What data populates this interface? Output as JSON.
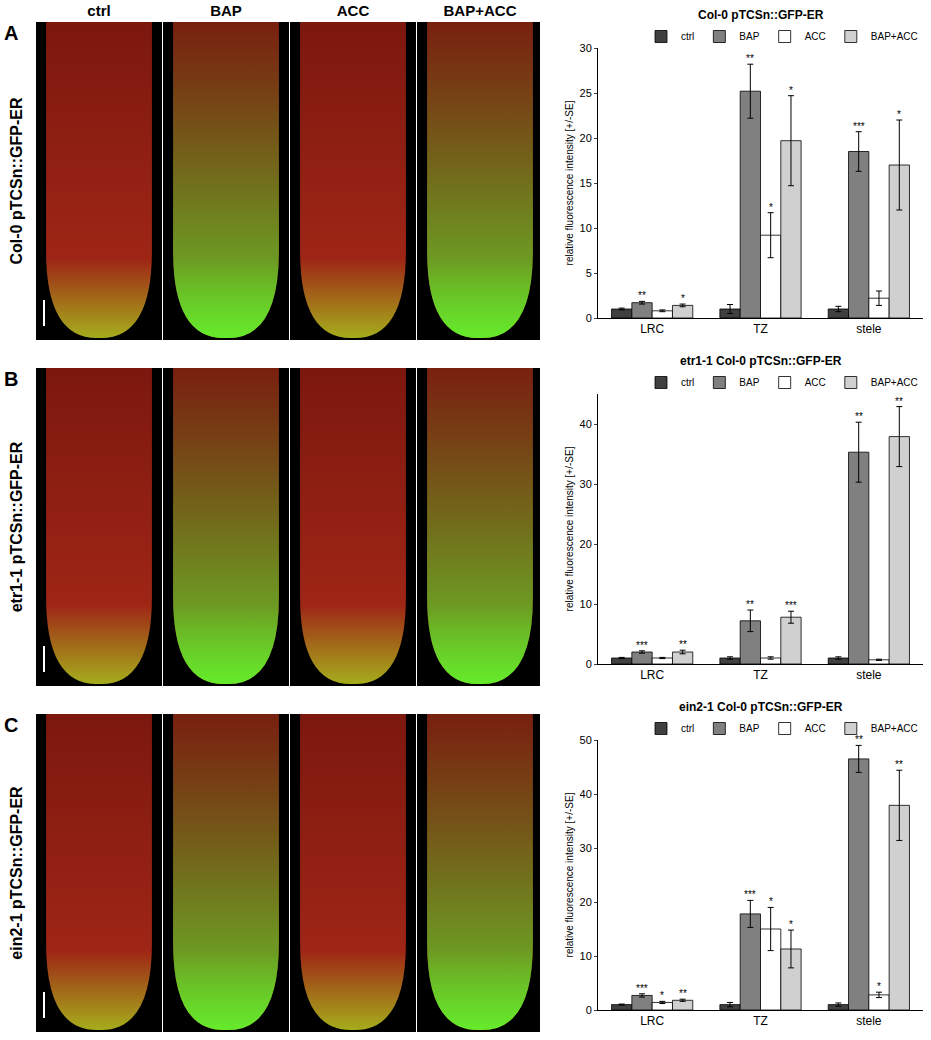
{
  "image_panels": {
    "columns": [
      "ctrl",
      "BAP",
      "ACC",
      "BAP+ACC"
    ],
    "rows": [
      {
        "letter": "A",
        "label": "Col-0 pTCSn::GFP-ER"
      },
      {
        "letter": "B",
        "label": "etr1-1 pTCSn::GFP-ER"
      },
      {
        "letter": "C",
        "label": "ein2-1 pTCSn::GFP-ER"
      }
    ]
  },
  "chart_data": [
    {
      "type": "bar",
      "title": "Col-0 pTCSn::GFP-ER",
      "y_label": "relative fluorescence intensity [+/-SE]",
      "categories": [
        "LRC",
        "TZ",
        "stele"
      ],
      "ylim": [
        0,
        30
      ],
      "yticks": [
        0,
        5,
        10,
        15,
        20,
        25,
        30
      ],
      "grid": false,
      "legend": "top",
      "series": [
        {
          "name": "ctrl",
          "color": "#404040",
          "values": [
            1.0,
            1.0,
            1.0
          ],
          "errors": [
            0.1,
            0.5,
            0.3
          ],
          "significance": [
            null,
            null,
            null
          ]
        },
        {
          "name": "BAP",
          "color": "#808080",
          "values": [
            1.7,
            25.2,
            18.5
          ],
          "errors": [
            0.15,
            3.0,
            2.2
          ],
          "significance": [
            "**",
            "**",
            "***"
          ]
        },
        {
          "name": "ACC",
          "color": "#ffffff",
          "values": [
            0.8,
            9.2,
            2.2
          ],
          "errors": [
            0.1,
            2.5,
            0.8
          ],
          "significance": [
            null,
            "*",
            null
          ]
        },
        {
          "name": "BAP+ACC",
          "color": "#d0d0d0",
          "values": [
            1.4,
            19.7,
            17.0
          ],
          "errors": [
            0.15,
            5.0,
            5.0
          ],
          "significance": [
            "*",
            "*",
            "*"
          ]
        }
      ]
    },
    {
      "type": "bar",
      "title": "etr1-1 Col-0 pTCSn::GFP-ER",
      "y_label": "relative fluorescence intensity [+/-SE]",
      "categories": [
        "LRC",
        "TZ",
        "stele"
      ],
      "ylim": [
        0,
        45
      ],
      "yticks": [
        0,
        10,
        20,
        30,
        40
      ],
      "grid": false,
      "legend": "top",
      "series": [
        {
          "name": "ctrl",
          "color": "#404040",
          "values": [
            1.0,
            1.0,
            1.0
          ],
          "errors": [
            0.1,
            0.2,
            0.2
          ],
          "significance": [
            null,
            null,
            null
          ]
        },
        {
          "name": "BAP",
          "color": "#808080",
          "values": [
            2.0,
            7.2,
            35.3
          ],
          "errors": [
            0.2,
            1.8,
            5.0
          ],
          "significance": [
            "***",
            "**",
            "**"
          ]
        },
        {
          "name": "ACC",
          "color": "#ffffff",
          "values": [
            1.0,
            1.0,
            0.7
          ],
          "errors": [
            0.1,
            0.2,
            0.1
          ],
          "significance": [
            null,
            null,
            null
          ]
        },
        {
          "name": "BAP+ACC",
          "color": "#d0d0d0",
          "values": [
            2.0,
            7.8,
            37.9
          ],
          "errors": [
            0.3,
            1.0,
            5.0
          ],
          "significance": [
            "**",
            "***",
            "**"
          ]
        }
      ]
    },
    {
      "type": "bar",
      "title": "ein2-1 Col-0 pTCSn::GFP-ER",
      "y_label": "relative fluorescence intensity [+/-SE]",
      "categories": [
        "LRC",
        "TZ",
        "stele"
      ],
      "ylim": [
        0,
        50
      ],
      "yticks": [
        0,
        10,
        20,
        30,
        40,
        50
      ],
      "grid": false,
      "legend": "top",
      "series": [
        {
          "name": "ctrl",
          "color": "#404040",
          "values": [
            1.0,
            1.0,
            1.0
          ],
          "errors": [
            0.1,
            0.4,
            0.3
          ],
          "significance": [
            null,
            null,
            null
          ]
        },
        {
          "name": "BAP",
          "color": "#808080",
          "values": [
            2.7,
            17.8,
            46.5
          ],
          "errors": [
            0.3,
            2.5,
            2.5
          ],
          "significance": [
            "***",
            "***",
            "**"
          ]
        },
        {
          "name": "ACC",
          "color": "#ffffff",
          "values": [
            1.4,
            15.0,
            2.8
          ],
          "errors": [
            0.2,
            4.0,
            0.5
          ],
          "significance": [
            "*",
            "*",
            "*"
          ]
        },
        {
          "name": "BAP+ACC",
          "color": "#d0d0d0",
          "values": [
            1.8,
            11.3,
            37.9
          ],
          "errors": [
            0.2,
            3.5,
            6.5
          ],
          "significance": [
            "**",
            "*",
            "**"
          ]
        }
      ]
    }
  ]
}
